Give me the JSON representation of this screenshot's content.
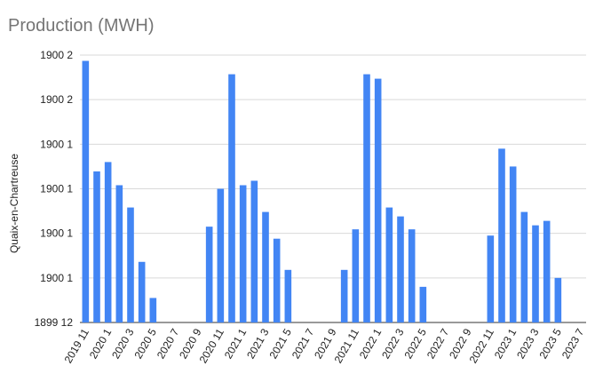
{
  "chart_data": {
    "type": "bar",
    "title": "Production (MWH)",
    "ylabel": "Quaix-en-Chartreuse",
    "xlabel": "",
    "y_tick_labels": [
      "1899 12",
      "1900 1",
      "1900 1",
      "1900 1",
      "1900 1",
      "1900 2",
      "1900 2"
    ],
    "ylim": [
      0,
      6
    ],
    "grid": true,
    "bar_color": "#4285f4",
    "categories": [
      "2019 11",
      "2019 12",
      "2020 1",
      "2020 2",
      "2020 3",
      "2020 4",
      "2020 5",
      "2020 6",
      "2020 7",
      "2020 8",
      "2020 9",
      "2020 10",
      "2020 11",
      "2020 12",
      "2021 1",
      "2021 2",
      "2021 3",
      "2021 4",
      "2021 5",
      "2021 6",
      "2021 7",
      "2021 8",
      "2021 9",
      "2021 10",
      "2021 11",
      "2021 12",
      "2022 1",
      "2022 2",
      "2022 3",
      "2022 4",
      "2022 5",
      "2022 6",
      "2022 7",
      "2022 8",
      "2022 9",
      "2022 10",
      "2022 11",
      "2022 12",
      "2023 1",
      "2023 2",
      "2023 3",
      "2023 4",
      "2023 5",
      "2023 6",
      "2023 7"
    ],
    "x_tick_labels": [
      "2019 11",
      "2020 1",
      "2020 3",
      "2020 5",
      "2020 7",
      "2020 9",
      "2020 11",
      "2021 1",
      "2021 3",
      "2021 5",
      "2021 7",
      "2021 9",
      "2021 11",
      "2022 1",
      "2022 3",
      "2022 5",
      "2022 7",
      "2022 9",
      "2022 11",
      "2023 1",
      "2023 3",
      "2023 5",
      "2023 7"
    ],
    "values": [
      5.87,
      3.39,
      3.6,
      3.08,
      2.58,
      1.36,
      0.55,
      0,
      0,
      0,
      0,
      2.15,
      3.0,
      5.57,
      3.08,
      3.18,
      2.48,
      1.88,
      1.18,
      0,
      0,
      0,
      0,
      1.18,
      2.09,
      5.57,
      5.47,
      2.58,
      2.38,
      2.09,
      0.8,
      0,
      0,
      0,
      0,
      0,
      1.95,
      3.9,
      3.5,
      2.48,
      2.18,
      2.28,
      1.0,
      0,
      0
    ]
  }
}
